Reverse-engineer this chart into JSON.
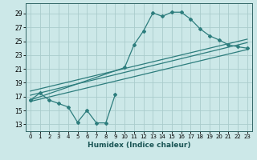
{
  "xlabel": "Humidex (Indice chaleur)",
  "bg_color": "#cce8e8",
  "grid_color": "#aacccc",
  "line_color": "#2d7d7d",
  "xlim": [
    -0.5,
    23.5
  ],
  "ylim": [
    12.0,
    30.5
  ],
  "yticks": [
    13,
    15,
    17,
    19,
    21,
    23,
    25,
    27,
    29
  ],
  "xticks": [
    0,
    1,
    2,
    3,
    4,
    5,
    6,
    7,
    8,
    9,
    10,
    11,
    12,
    13,
    14,
    15,
    16,
    17,
    18,
    19,
    20,
    21,
    22,
    23
  ],
  "curve_jagged": {
    "x": [
      0,
      1,
      2,
      3,
      4,
      5,
      6,
      7,
      8,
      9
    ],
    "y": [
      16.5,
      17.5,
      16.5,
      16.0,
      15.5,
      13.3,
      15.0,
      13.2,
      13.2,
      17.3
    ]
  },
  "curve_peak": {
    "x": [
      0,
      10,
      11,
      12,
      13,
      14,
      15,
      16,
      17,
      18,
      19,
      20,
      21,
      22,
      23
    ],
    "y": [
      16.5,
      21.2,
      24.5,
      26.5,
      29.1,
      28.6,
      29.2,
      29.2,
      28.2,
      26.8,
      25.8,
      25.2,
      24.5,
      24.2,
      24.0
    ]
  },
  "line1": {
    "x": [
      0,
      23
    ],
    "y": [
      17.2,
      24.8
    ]
  },
  "line2": {
    "x": [
      0,
      23
    ],
    "y": [
      17.8,
      25.3
    ]
  },
  "line3": {
    "x": [
      0,
      23
    ],
    "y": [
      16.3,
      23.8
    ]
  }
}
